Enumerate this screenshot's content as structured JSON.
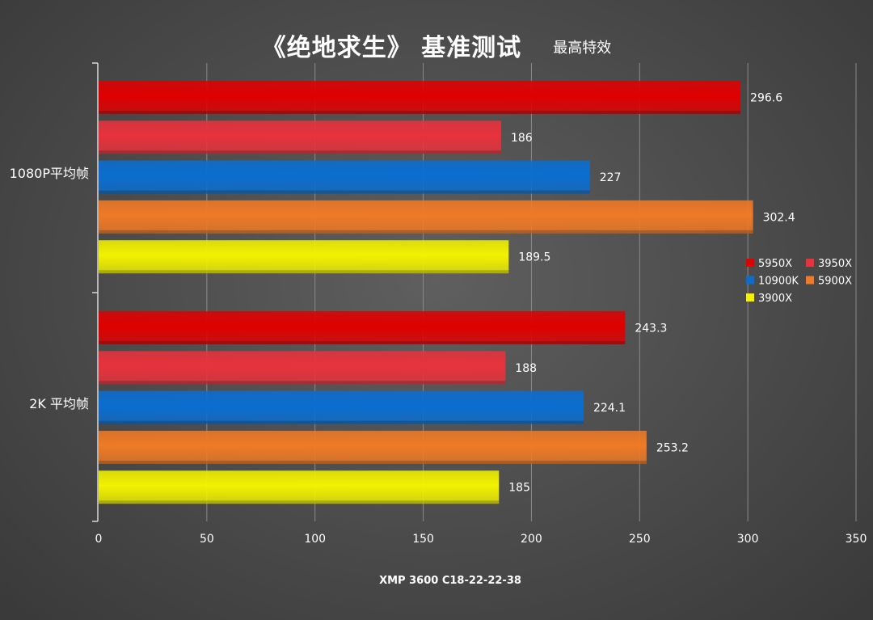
{
  "colors": {
    "5950X": "#e00000",
    "3950X": "#e8323c",
    "10900K": "#0a6ed1",
    "5900X": "#f07a26",
    "3900X": "#f2f200"
  },
  "chart_data": {
    "type": "bar",
    "orientation": "horizontal",
    "title": "《绝地求生》 基准测试",
    "subtitle": "最高特效",
    "xlabel": "XMP 3600 C18-22-22-38",
    "ylabel": "",
    "xlim": [
      0,
      350
    ],
    "xticks": [
      0,
      50,
      100,
      150,
      200,
      250,
      300,
      350
    ],
    "grid": true,
    "legend_position": "right",
    "categories": [
      "1080P平均帧",
      "2K 平均帧"
    ],
    "series": [
      {
        "name": "5950X",
        "values": [
          296.6,
          243.3
        ]
      },
      {
        "name": "3950X",
        "values": [
          186,
          188
        ]
      },
      {
        "name": "10900K",
        "values": [
          227,
          224.1
        ]
      },
      {
        "name": "5900X",
        "values": [
          302.4,
          253.2
        ]
      },
      {
        "name": "3900X",
        "values": [
          189.5,
          185
        ]
      }
    ],
    "data_labels": [
      [
        "296.6",
        "186",
        "227",
        "302.4",
        "189.5"
      ],
      [
        "243.3",
        "188",
        "224.1",
        "253.2",
        "185"
      ]
    ]
  }
}
